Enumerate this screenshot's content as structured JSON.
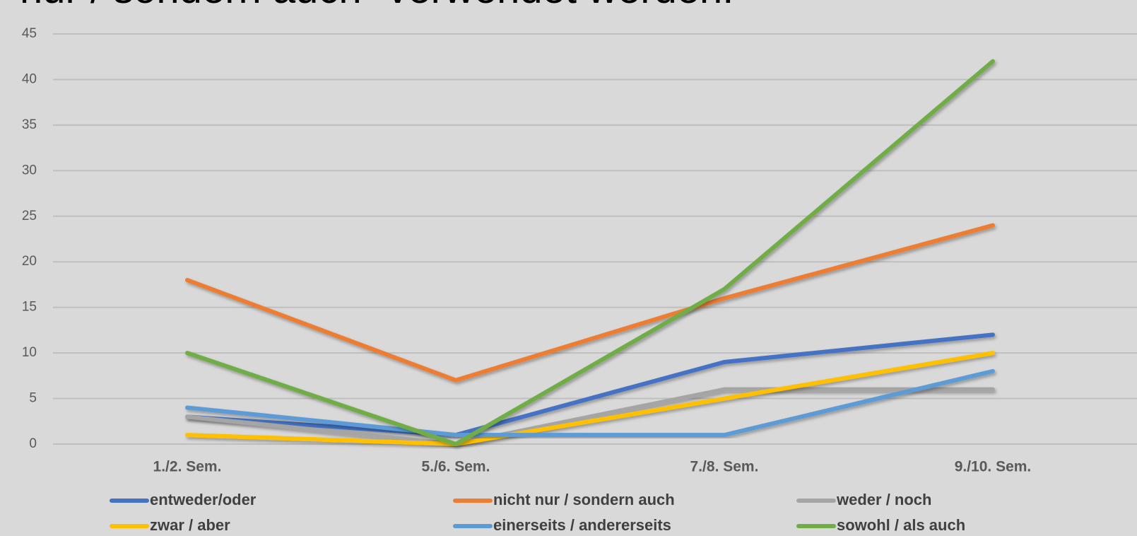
{
  "chart_data": {
    "type": "line",
    "title": "nur / sondern auch\" verwendet werden.",
    "categories": [
      "1./2. Sem.",
      "5./6. Sem.",
      "7./8. Sem.",
      "9./10. Sem."
    ],
    "series": [
      {
        "name": "entweder/oder",
        "color": "#4472c4",
        "values": [
          3,
          1,
          9,
          12
        ]
      },
      {
        "name": "nicht nur / sondern auch",
        "color": "#ed7d31",
        "values": [
          18,
          7,
          16,
          24
        ]
      },
      {
        "name": "weder / noch",
        "color": "#a5a5a5",
        "values": [
          3,
          0,
          6,
          6
        ]
      },
      {
        "name": "zwar / aber",
        "color": "#ffc000",
        "values": [
          1,
          0,
          5,
          10
        ]
      },
      {
        "name": "einerseits / andererseits",
        "color": "#5b9bd5",
        "values": [
          4,
          1,
          1,
          8
        ]
      },
      {
        "name": "sowohl / als auch",
        "color": "#70ad47",
        "values": [
          10,
          0,
          17,
          42
        ]
      }
    ],
    "ylim": [
      0,
      45
    ],
    "yticks": [
      0,
      5,
      10,
      15,
      20,
      25,
      30,
      35,
      40,
      45
    ],
    "grid": true,
    "legend": "bottom"
  }
}
